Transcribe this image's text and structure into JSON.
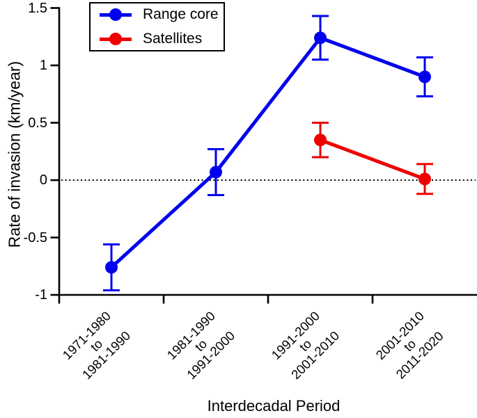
{
  "chart_data": {
    "type": "line",
    "title": "",
    "xlabel": "Interdecadal Period",
    "ylabel": "Rate of invasion (km/year)",
    "x_type": "categorical",
    "categories": [
      "1971-1980 to 1981-1990",
      "1981-1990 to 1991-2000",
      "1991-2000 to 2001-2010",
      "2001-2010 to 2011-2020"
    ],
    "categories_lines": [
      [
        "1971-1980",
        "to",
        "1981-1990"
      ],
      [
        "1981-1990",
        "to",
        "1991-2000"
      ],
      [
        "1991-2000",
        "to",
        "2001-2010"
      ],
      [
        "2001-2010",
        "to",
        "2011-2020"
      ]
    ],
    "ylim": [
      -1,
      1.5
    ],
    "yticks": [
      1.5,
      1,
      0.5,
      0,
      -0.5,
      -1
    ],
    "ytick_labels": [
      "1.5",
      "1",
      "0.5",
      "0",
      "-0.5",
      "-1"
    ],
    "grid": false,
    "zero_reference_line": {
      "value": 0,
      "style": "dotted",
      "color": "#000000"
    },
    "legend_position": "top-left",
    "axis_color": "#000000",
    "series": [
      {
        "name": "Range core",
        "color": "#0000ee",
        "marker": "circle",
        "category_indices": [
          0,
          1,
          2,
          3
        ],
        "values": [
          -0.76,
          0.07,
          1.24,
          0.9
        ],
        "errors": [
          0.2,
          0.2,
          0.19,
          0.17
        ]
      },
      {
        "name": "Satellites",
        "color": "#ee0000",
        "marker": "circle",
        "category_indices": [
          2,
          3
        ],
        "values": [
          0.35,
          0.01
        ],
        "errors": [
          0.15,
          0.13
        ]
      }
    ]
  }
}
